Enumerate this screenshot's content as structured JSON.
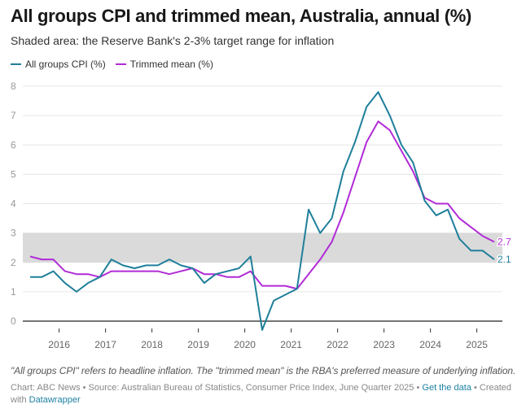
{
  "header": {
    "title": "All groups CPI and trimmed mean, Australia, annual (%)",
    "subtitle": "Shaded area: the Reserve Bank's 2-3% target range for inflation"
  },
  "legend": [
    {
      "label": "All groups CPI (%)",
      "color": "#1f7f9a"
    },
    {
      "label": "Trimmed mean (%)",
      "color": "#b12bd6"
    }
  ],
  "footer": {
    "note": "\"All groups CPI\" refers to headline inflation. The \"trimmed mean\" is the RBA's preferred measure of underlying inflation.",
    "credit_prefix": "Chart: ABC News • Source: Australian Bureau of Statistics, Consumer Price Index, June Quarter 2025 • ",
    "get_data_link": "Get the data",
    "credit_middle": " • Created with ",
    "datawrapper_link": "Datawrapper"
  },
  "chart_data": {
    "type": "line",
    "title": "All groups CPI and trimmed mean, Australia, annual (%)",
    "subtitle": "Shaded area: the Reserve Bank's 2-3% target range for inflation",
    "xlabel": "",
    "ylabel": "",
    "ylim": [
      0,
      8
    ],
    "yticks": [
      0,
      1,
      2,
      3,
      4,
      5,
      6,
      7,
      8
    ],
    "xtick_labels": [
      "2016",
      "2017",
      "2018",
      "2019",
      "2020",
      "2021",
      "2022",
      "2023",
      "2024",
      "2025"
    ],
    "grid": true,
    "legend_position": "top-left",
    "shaded_band": {
      "from": 2,
      "to": 3,
      "label": "RBA 2-3% target range",
      "color": "#dadada"
    },
    "x": [
      "Jun 2015",
      "Sep 2015",
      "Dec 2015",
      "Mar 2016",
      "Jun 2016",
      "Sep 2016",
      "Dec 2016",
      "Mar 2017",
      "Jun 2017",
      "Sep 2017",
      "Dec 2017",
      "Mar 2018",
      "Jun 2018",
      "Sep 2018",
      "Dec 2018",
      "Mar 2019",
      "Jun 2019",
      "Sep 2019",
      "Dec 2019",
      "Mar 2020",
      "Jun 2020",
      "Sep 2020",
      "Dec 2020",
      "Mar 2021",
      "Jun 2021",
      "Sep 2021",
      "Dec 2021",
      "Mar 2022",
      "Jun 2022",
      "Sep 2022",
      "Dec 2022",
      "Mar 2023",
      "Jun 2023",
      "Sep 2023",
      "Dec 2023",
      "Mar 2024",
      "Jun 2024",
      "Sep 2024",
      "Dec 2024",
      "Mar 2025",
      "Jun 2025"
    ],
    "series": [
      {
        "name": "All groups CPI (%)",
        "color": "#1f7f9a",
        "end_label": "2.1",
        "values": [
          1.5,
          1.5,
          1.7,
          1.3,
          1.0,
          1.3,
          1.5,
          2.1,
          1.9,
          1.8,
          1.9,
          1.9,
          2.1,
          1.9,
          1.8,
          1.3,
          1.6,
          1.7,
          1.8,
          2.2,
          -0.3,
          0.7,
          0.9,
          1.1,
          3.8,
          3.0,
          3.5,
          5.1,
          6.1,
          7.3,
          7.8,
          7.0,
          6.0,
          5.4,
          4.1,
          3.6,
          3.8,
          2.8,
          2.4,
          2.4,
          2.1
        ]
      },
      {
        "name": "Trimmed mean (%)",
        "color": "#b12bd6",
        "end_label": "2.7",
        "values": [
          2.2,
          2.1,
          2.1,
          1.7,
          1.6,
          1.6,
          1.5,
          1.7,
          1.7,
          1.7,
          1.7,
          1.7,
          1.6,
          1.7,
          1.8,
          1.6,
          1.6,
          1.5,
          1.5,
          1.7,
          1.2,
          1.2,
          1.2,
          1.1,
          1.6,
          2.1,
          2.7,
          3.7,
          4.9,
          6.1,
          6.8,
          6.5,
          5.8,
          5.1,
          4.2,
          4.0,
          4.0,
          3.5,
          3.2,
          2.9,
          2.7
        ]
      }
    ]
  }
}
